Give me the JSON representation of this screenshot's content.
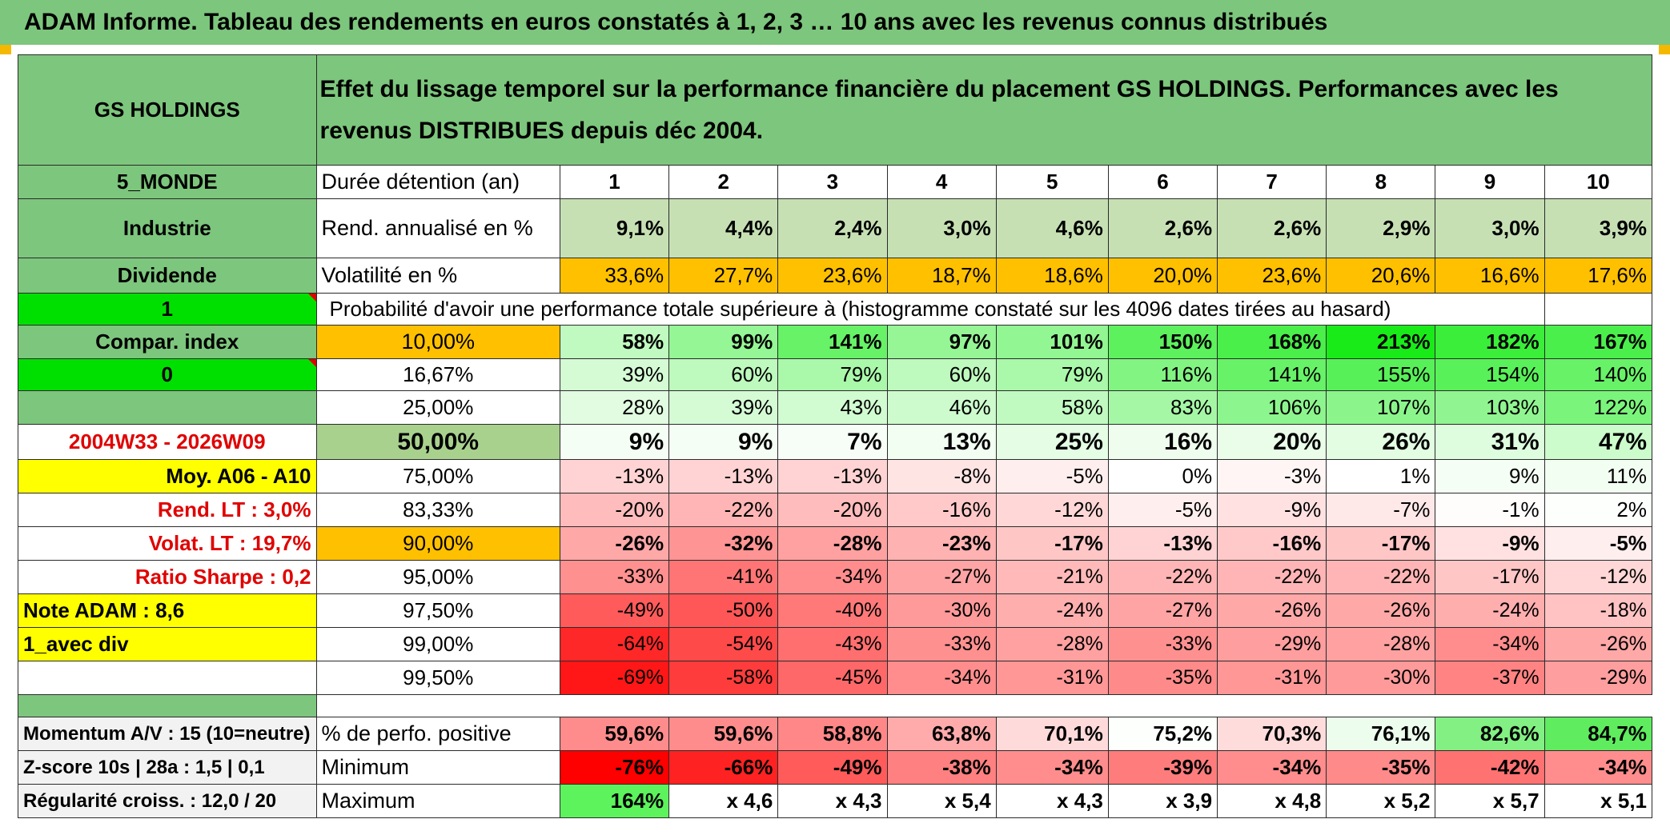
{
  "title": "ADAM Informe. Tableau des rendements en euros constatés à 1, 2, 3 … 10 ans avec les revenus connus distribués",
  "header": {
    "company": "GS HOLDINGS",
    "description": "Effet du lissage temporel sur la performance financière du placement GS HOLDINGS. Performances avec les revenus DISTRIBUES depuis déc 2004."
  },
  "left": {
    "zone": "5_MONDE",
    "sector": "Industrie",
    "income": "Dividende",
    "one": "1",
    "compar": "Compar. index",
    "zero": "0",
    "period": "2004W33 - 2026W09",
    "moy": "Moy. A06 - A10",
    "rend_lt": "Rend. LT :   3,0%",
    "volat_lt": "Volat. LT :   19,7%",
    "sharpe": "Ratio Sharpe :    0,2",
    "note": "Note ADAM : 8,6",
    "div": "1_avec div",
    "momentum": "Momentum A/V : 15 (10=neutre)",
    "zscore": "Z-score 10s | 28a : 1,5 | 0,1",
    "regularite": "Régularité croiss. : 12,0 / 20"
  },
  "labels": {
    "duree": "Durée détention (an)",
    "rend": "Rend. annualisé en %",
    "vol": "Volatilité en %",
    "proba": "Probabilité d'avoir une performance totale supérieure à (histogramme constaté sur les 4096 dates tirées au hasard)",
    "positive": "% de perfo. positive",
    "minimum": "Minimum",
    "maximum": "Maximum"
  },
  "years": [
    "1",
    "2",
    "3",
    "4",
    "5",
    "6",
    "7",
    "8",
    "9",
    "10"
  ],
  "rend": [
    "9,1%",
    "4,4%",
    "2,4%",
    "3,0%",
    "4,6%",
    "2,6%",
    "2,6%",
    "2,9%",
    "3,0%",
    "3,9%"
  ],
  "vol": [
    "33,6%",
    "27,7%",
    "23,6%",
    "18,7%",
    "18,6%",
    "20,0%",
    "23,6%",
    "20,6%",
    "16,6%",
    "17,6%"
  ],
  "proba_rows": [
    {
      "threshold": "10,00%",
      "values": [
        "58%",
        "99%",
        "141%",
        "97%",
        "101%",
        "150%",
        "168%",
        "213%",
        "182%",
        "167%"
      ]
    },
    {
      "threshold": "16,67%",
      "values": [
        "39%",
        "60%",
        "79%",
        "60%",
        "79%",
        "116%",
        "141%",
        "155%",
        "154%",
        "140%"
      ]
    },
    {
      "threshold": "25,00%",
      "values": [
        "28%",
        "39%",
        "43%",
        "46%",
        "58%",
        "83%",
        "106%",
        "107%",
        "103%",
        "122%"
      ]
    },
    {
      "threshold": "50,00%",
      "values": [
        "9%",
        "9%",
        "7%",
        "13%",
        "25%",
        "16%",
        "20%",
        "26%",
        "31%",
        "47%"
      ]
    },
    {
      "threshold": "75,00%",
      "values": [
        "-13%",
        "-13%",
        "-13%",
        "-8%",
        "-5%",
        "0%",
        "-3%",
        "1%",
        "9%",
        "11%"
      ]
    },
    {
      "threshold": "83,33%",
      "values": [
        "-20%",
        "-22%",
        "-20%",
        "-16%",
        "-12%",
        "-5%",
        "-9%",
        "-7%",
        "-1%",
        "2%"
      ]
    },
    {
      "threshold": "90,00%",
      "values": [
        "-26%",
        "-32%",
        "-28%",
        "-23%",
        "-17%",
        "-13%",
        "-16%",
        "-17%",
        "-9%",
        "-5%"
      ]
    },
    {
      "threshold": "95,00%",
      "values": [
        "-33%",
        "-41%",
        "-34%",
        "-27%",
        "-21%",
        "-22%",
        "-22%",
        "-22%",
        "-17%",
        "-12%"
      ]
    },
    {
      "threshold": "97,50%",
      "values": [
        "-49%",
        "-50%",
        "-40%",
        "-30%",
        "-24%",
        "-27%",
        "-26%",
        "-26%",
        "-24%",
        "-18%"
      ]
    },
    {
      "threshold": "99,00%",
      "values": [
        "-64%",
        "-54%",
        "-43%",
        "-33%",
        "-28%",
        "-33%",
        "-29%",
        "-28%",
        "-34%",
        "-26%"
      ]
    },
    {
      "threshold": "99,50%",
      "values": [
        "-69%",
        "-58%",
        "-45%",
        "-34%",
        "-31%",
        "-35%",
        "-31%",
        "-30%",
        "-37%",
        "-29%"
      ]
    }
  ],
  "positive": [
    "59,6%",
    "59,6%",
    "58,8%",
    "63,8%",
    "70,1%",
    "75,2%",
    "70,3%",
    "76,1%",
    "82,6%",
    "84,7%"
  ],
  "minimum": [
    "-76%",
    "-66%",
    "-49%",
    "-38%",
    "-34%",
    "-39%",
    "-34%",
    "-35%",
    "-42%",
    "-34%"
  ],
  "maximum": [
    "164%",
    "x 4,6",
    "x 4,3",
    "x 5,4",
    "x 4,3",
    "x 3,9",
    "x 4,8",
    "x 5,2",
    "x 5,7",
    "x 5,1"
  ],
  "colors": {
    "header_green": "#7dc67d",
    "rend_green": "#c6e0b4",
    "vol_orange": "#ffc000",
    "bright_green": "#00e000",
    "yellow": "#ffff00",
    "red_text": "#e00000"
  }
}
